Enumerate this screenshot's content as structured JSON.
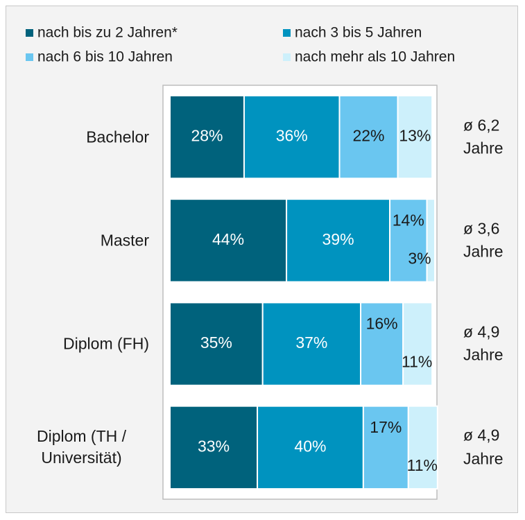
{
  "chart_data": {
    "type": "stacked-bar-horizontal",
    "categories": [
      "Bachelor",
      "Master",
      "Diplom (FH)",
      "Diplom (TH / Universität)"
    ],
    "series": [
      {
        "name": "nach bis zu 2 Jahren*",
        "color": "#00627c",
        "label_color": "#ffffff",
        "values": [
          28,
          44,
          35,
          33
        ],
        "value_labels": [
          "28%",
          "44%",
          "35%",
          "33%"
        ]
      },
      {
        "name": "nach 3 bis 5 Jahren",
        "color": "#0093bf",
        "label_color": "#ffffff",
        "values": [
          36,
          39,
          37,
          40
        ],
        "value_labels": [
          "36%",
          "39%",
          "37%",
          "40%"
        ]
      },
      {
        "name": "nach 6 bis 10 Jahren",
        "color": "#6ac6f0",
        "label_color": "#1a1a1a",
        "values": [
          22,
          14,
          16,
          17
        ],
        "value_labels": [
          "22%",
          "14%",
          "16%",
          "17%"
        ]
      },
      {
        "name": "nach mehr als 10 Jahren",
        "color": "#cdf0fb",
        "label_color": "#1a1a1a",
        "values": [
          13,
          3,
          11,
          11
        ],
        "value_labels": [
          "13%",
          "3%",
          "11%",
          "11%"
        ]
      }
    ],
    "annotations": [
      "ø 6,2 Jahre",
      "ø 3,6 Jahre",
      "ø 4,9 Jahre",
      "ø 4,9 Jahre"
    ],
    "xlim": [
      0,
      100
    ],
    "legend": "top"
  }
}
